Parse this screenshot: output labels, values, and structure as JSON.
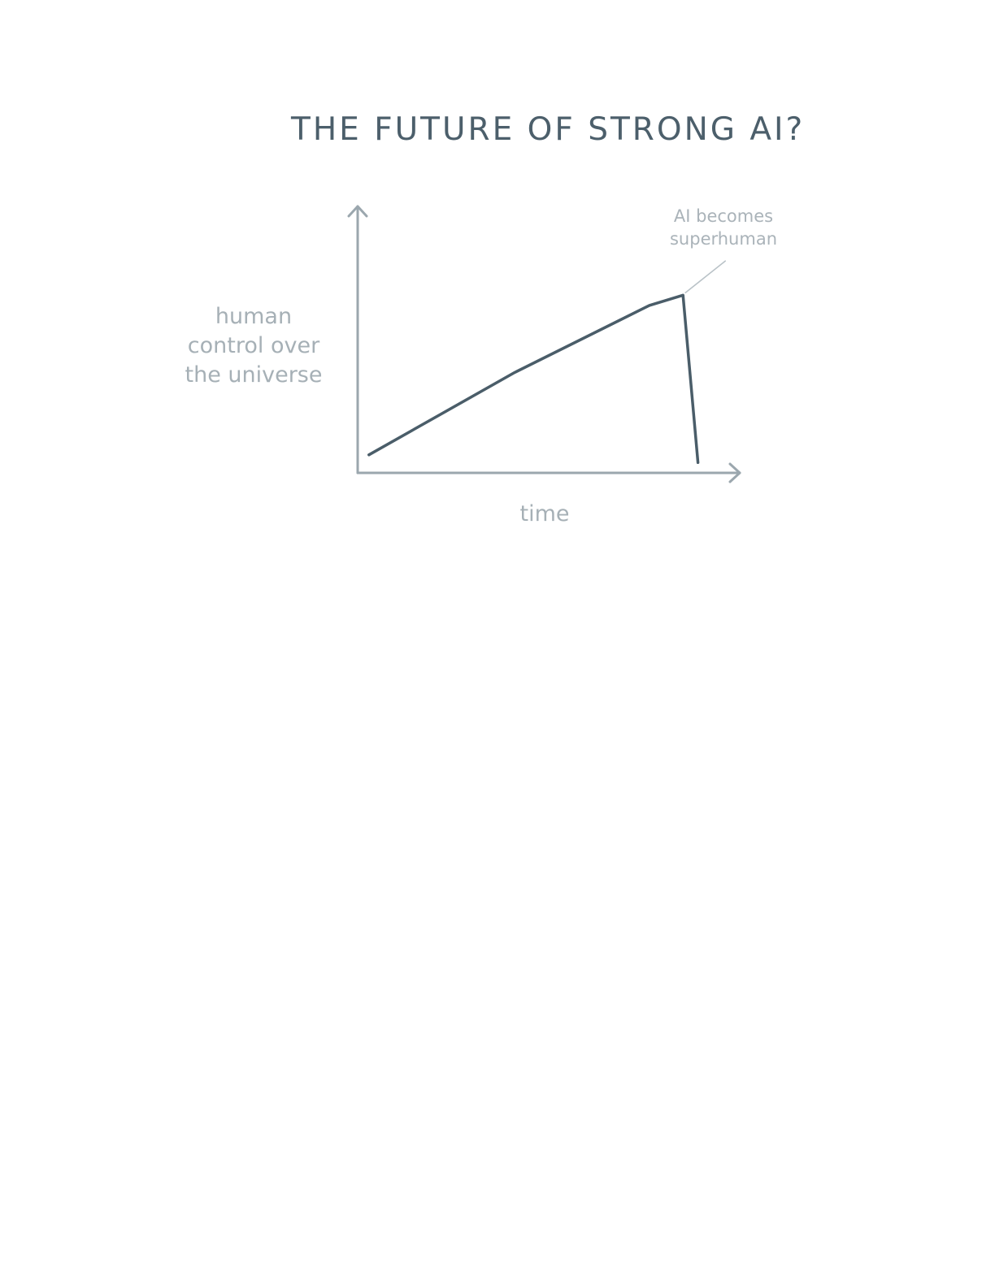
{
  "colors": {
    "title": "#4c5f6b",
    "axis": "#9ba7ae",
    "series": "#4a5d69",
    "label": "#a6b0b6",
    "annotation_text": "#aab3b9",
    "annotation_line": "#b9c2c7"
  },
  "chart_data": {
    "type": "line",
    "title": "THE FUTURE OF STRONG AI?",
    "xlabel": "time",
    "ylabel": "human\ncontrol over\nthe universe",
    "xlim": [
      0,
      100
    ],
    "ylim": [
      0,
      100
    ],
    "axis_ticks": false,
    "grid": false,
    "legend": "none",
    "series": [
      {
        "values": [
          {
            "x": 3,
            "y": 7
          },
          {
            "x": 42,
            "y": 39
          },
          {
            "x": 78,
            "y": 65
          },
          {
            "x": 87,
            "y": 69
          },
          {
            "x": 91,
            "y": 4
          }
        ]
      }
    ],
    "annotations": [
      {
        "text": "AI becomes\nsuperhuman",
        "x": 87,
        "y": 69
      }
    ]
  }
}
